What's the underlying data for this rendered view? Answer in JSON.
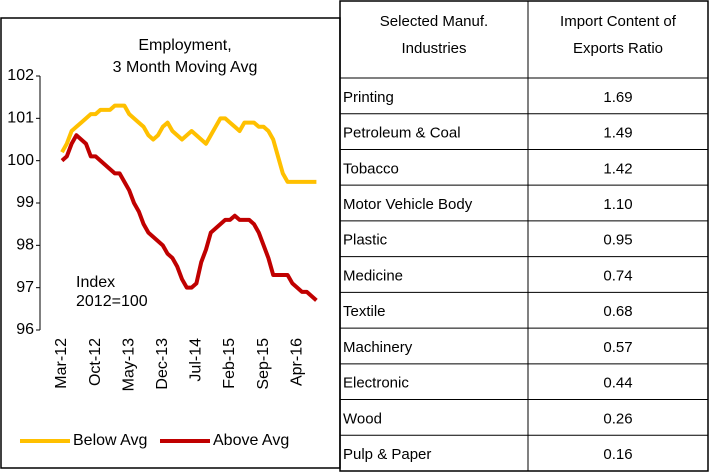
{
  "chart_data": {
    "type": "line",
    "title": "Employment,",
    "subtitle": "3 Month Moving Avg",
    "annotations": [
      "Index",
      "2012=100"
    ],
    "categories": [
      "Mar-12",
      null,
      null,
      null,
      null,
      null,
      null,
      "Oct-12",
      null,
      null,
      null,
      null,
      null,
      null,
      "May-13",
      null,
      null,
      null,
      null,
      null,
      null,
      "Dec-13",
      null,
      null,
      null,
      null,
      null,
      null,
      "Jul-14",
      null,
      null,
      null,
      null,
      null,
      null,
      "Feb-15",
      null,
      null,
      null,
      null,
      null,
      null,
      "Sep-15",
      null,
      null,
      null,
      null,
      null,
      null,
      "Apr-16",
      null,
      null,
      null,
      null
    ],
    "series": [
      {
        "name": "Below Avg",
        "color": "#ffc000",
        "values": [
          100.2,
          100.4,
          100.7,
          100.8,
          100.9,
          101.0,
          101.1,
          101.1,
          101.2,
          101.2,
          101.2,
          101.3,
          101.3,
          101.3,
          101.1,
          101.0,
          100.9,
          100.8,
          100.6,
          100.5,
          100.6,
          100.8,
          100.9,
          100.7,
          100.6,
          100.5,
          100.6,
          100.7,
          100.6,
          100.5,
          100.4,
          100.6,
          100.8,
          101.0,
          101.0,
          100.9,
          100.8,
          100.7,
          100.9,
          100.9,
          100.9,
          100.8,
          100.8,
          100.7,
          100.5,
          100.1,
          99.7,
          99.5,
          99.5,
          99.5,
          99.5,
          99.5,
          99.5,
          99.5
        ]
      },
      {
        "name": "Above Avg",
        "color": "#c00000",
        "values": [
          100.0,
          100.1,
          100.4,
          100.6,
          100.5,
          100.4,
          100.1,
          100.1,
          100.0,
          99.9,
          99.8,
          99.7,
          99.7,
          99.5,
          99.3,
          99.0,
          98.8,
          98.5,
          98.3,
          98.2,
          98.1,
          98.0,
          97.8,
          97.7,
          97.5,
          97.2,
          97.0,
          97.0,
          97.1,
          97.6,
          97.9,
          98.3,
          98.4,
          98.5,
          98.6,
          98.6,
          98.7,
          98.6,
          98.6,
          98.6,
          98.5,
          98.3,
          98.0,
          97.7,
          97.3,
          97.3,
          97.3,
          97.3,
          97.1,
          97.0,
          96.9,
          96.9,
          96.8,
          96.7
        ]
      }
    ],
    "ylim": [
      96,
      102
    ],
    "yticks": [
      96,
      97,
      98,
      99,
      100,
      101,
      102
    ]
  },
  "table": {
    "header": [
      [
        "Selected Manuf.",
        "Industries"
      ],
      [
        "Import Content of",
        "Exports Ratio"
      ]
    ],
    "rows": [
      [
        "Printing",
        "1.69"
      ],
      [
        "Petroleum & Coal",
        "1.49"
      ],
      [
        "Tobacco",
        "1.42"
      ],
      [
        "Motor Vehicle Body",
        "1.10"
      ],
      [
        "Plastic",
        "0.95"
      ],
      [
        "Medicine",
        "0.74"
      ],
      [
        "Textile",
        "0.68"
      ],
      [
        "Machinery",
        "0.57"
      ],
      [
        "Electronic",
        "0.44"
      ],
      [
        "Wood",
        "0.26"
      ],
      [
        "Pulp & Paper",
        "0.16"
      ]
    ]
  }
}
